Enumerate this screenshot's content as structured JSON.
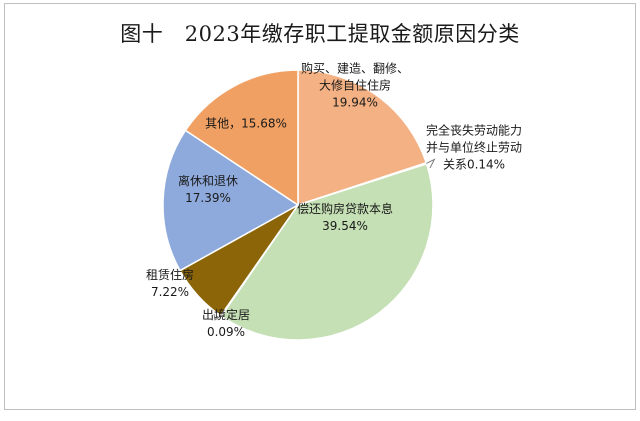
{
  "chart_data": {
    "type": "pie",
    "title": "图十   2023年缴存职工提取金额原因分类",
    "slices": [
      {
        "label": "购买、建造、翻修、大修自住住房",
        "label_lines": [
          "购买、建造、翻修、",
          "大修自住住房"
        ],
        "value": 19.94,
        "value_text": "19.94%",
        "color": "#F4B183"
      },
      {
        "label": "完全丧失劳动能力并与单位终止劳动关系",
        "label_lines": [
          "完全丧失劳动能力",
          "并与单位终止劳动",
          "关系0.14%"
        ],
        "value": 0.14,
        "value_text": "",
        "color": "#E8A060"
      },
      {
        "label": "偿还购房贷款本息",
        "label_lines": [
          "偿还购房贷款本息"
        ],
        "value": 39.54,
        "value_text": "39.54%",
        "color": "#C5E0B4"
      },
      {
        "label": "出境定居",
        "label_lines": [
          "出境定居"
        ],
        "value": 0.09,
        "value_text": "0.09%",
        "color": "#B07C2A"
      },
      {
        "label": "租赁住房",
        "label_lines": [
          "租赁住房"
        ],
        "value": 7.22,
        "value_text": "7.22%",
        "color": "#8B6508"
      },
      {
        "label": "离休和退休",
        "label_lines": [
          "离休和退休"
        ],
        "value": 17.39,
        "value_text": "17.39%",
        "color": "#8EA9DB"
      },
      {
        "label": "其他",
        "label_lines": [
          "其他，15.68%"
        ],
        "value": 15.68,
        "value_text": "",
        "color": "#F0A063"
      }
    ]
  }
}
